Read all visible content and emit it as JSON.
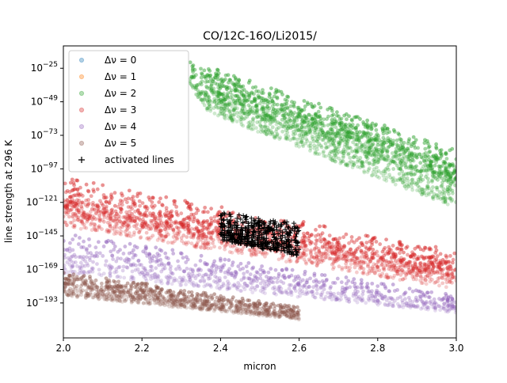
{
  "chart_data": {
    "type": "scatter",
    "title": "CO/12C-16O/Li2015/",
    "xlabel": "micron",
    "ylabel": "line strength at 296 K",
    "xlim": [
      2.0,
      3.0
    ],
    "ylim_log10": [
      -218,
      -9
    ],
    "y_scale": "log",
    "x_ticks": [
      {
        "value": 2.0,
        "label": "2.0"
      },
      {
        "value": 2.2,
        "label": "2.2"
      },
      {
        "value": 2.4,
        "label": "2.4"
      },
      {
        "value": 2.6,
        "label": "2.6"
      },
      {
        "value": 2.8,
        "label": "2.8"
      },
      {
        "value": 3.0,
        "label": "3.0"
      }
    ],
    "y_ticks": [
      {
        "exp": -25,
        "label": "−25"
      },
      {
        "exp": -49,
        "label": "−49"
      },
      {
        "exp": -73,
        "label": "−73"
      },
      {
        "exp": -97,
        "label": "−97"
      },
      {
        "exp": -121,
        "label": "−121"
      },
      {
        "exp": -145,
        "label": "−145"
      },
      {
        "exp": -169,
        "label": "−169"
      },
      {
        "exp": -193,
        "label": "−193"
      }
    ],
    "legend_position": "upper-left",
    "series": [
      {
        "name": "Δν = 0",
        "legend_label": "Δν = 0",
        "color": "#1f77b4",
        "marker": "circle",
        "bands": []
      },
      {
        "name": "Δν = 1",
        "legend_label": "Δν = 1",
        "color": "#ff7f0e",
        "marker": "circle",
        "bands": []
      },
      {
        "name": "Δν = 2",
        "legend_label": "Δν = 2",
        "color": "#2ca02c",
        "marker": "circle",
        "bands": [
          {
            "x0": 2.32,
            "x1": 3.0,
            "y0": -19,
            "y1": -83,
            "lo0": -45,
            "lo1": -108
          },
          {
            "x0": 2.35,
            "x1": 3.0,
            "y0": -24,
            "y1": -95,
            "lo0": -55,
            "lo1": -125
          }
        ]
      },
      {
        "name": "Δν = 3",
        "legend_label": "Δν = 3",
        "color": "#d62728",
        "marker": "circle",
        "bands": [
          {
            "x0": 2.0,
            "x1": 3.0,
            "y0": -103,
            "y1": -155,
            "lo0": -130,
            "lo1": -178
          },
          {
            "x0": 2.0,
            "x1": 3.0,
            "y0": -115,
            "y1": -162,
            "lo0": -138,
            "lo1": -183
          }
        ]
      },
      {
        "name": "Δν = 4",
        "legend_label": "Δν = 4",
        "color": "#9467bd",
        "marker": "circle",
        "bands": [
          {
            "x0": 2.0,
            "x1": 3.0,
            "y0": -142,
            "y1": -187,
            "lo0": -172,
            "lo1": -200
          }
        ]
      },
      {
        "name": "Δν = 5",
        "legend_label": "Δν = 5",
        "color": "#8c564b",
        "marker": "circle",
        "bands": [
          {
            "x0": 2.0,
            "x1": 2.6,
            "y0": -170,
            "y1": -196,
            "lo0": -188,
            "lo1": -205
          }
        ]
      },
      {
        "name": "activated lines",
        "legend_label": "activated lines",
        "color": "#000000",
        "marker": "plus",
        "bands": [
          {
            "x0": 2.4,
            "x1": 2.6,
            "y0": -127,
            "y1": -136,
            "lo0": -148,
            "lo1": -160
          }
        ]
      }
    ]
  }
}
